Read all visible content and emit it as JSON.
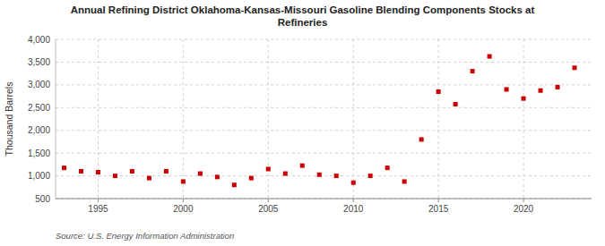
{
  "chart_data": {
    "type": "scatter",
    "title": "Annual Refining District Oklahoma-Kansas-Missouri Gasoline Blending Components Stocks at\nRefineries",
    "y_label": "Thousand Barrels",
    "source": "Source: U.S. Energy Information Administration",
    "x": [
      1993,
      1994,
      1995,
      1996,
      1997,
      1998,
      1999,
      2000,
      2001,
      2002,
      2003,
      2004,
      2005,
      2006,
      2007,
      2008,
      2009,
      2010,
      2011,
      2012,
      2013,
      2014,
      2015,
      2016,
      2017,
      2018,
      2019,
      2020,
      2021,
      2022,
      2023
    ],
    "values": [
      1175,
      1100,
      1080,
      1000,
      1100,
      950,
      1100,
      875,
      1050,
      975,
      800,
      950,
      1150,
      1050,
      1225,
      1025,
      1000,
      850,
      1000,
      1175,
      875,
      1800,
      2850,
      2575,
      3300,
      3625,
      2900,
      2700,
      2875,
      2950,
      3375
    ],
    "color": "#cc0000",
    "marker": "square",
    "xlim": [
      1992.5,
      2024
    ],
    "xticks": [
      1995,
      2000,
      2005,
      2010,
      2015,
      2020
    ],
    "ylim": [
      500,
      4000
    ],
    "yticks": [
      500,
      {
        "value": 1000,
        "label": "1,000"
      },
      {
        "value": 1500,
        "label": "1,500"
      },
      {
        "value": 2000,
        "label": "2,000"
      },
      {
        "value": 2500,
        "label": "2,500"
      },
      {
        "value": 3000,
        "label": "3,000"
      },
      {
        "value": 3500,
        "label": "3,500"
      },
      {
        "value": 4000,
        "label": "4,000"
      }
    ],
    "grid": true
  }
}
